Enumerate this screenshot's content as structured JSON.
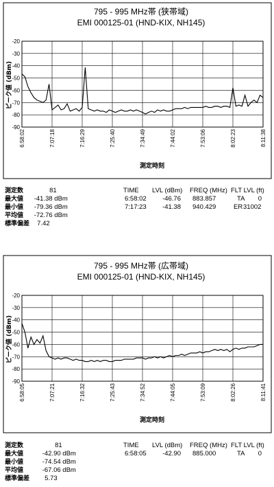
{
  "chart_data": [
    {
      "type": "line",
      "title": "795 - 995 MHz帯 (狭帯域)",
      "subtitle": "EMI 000125-01 (HND-KIX, NH145)",
      "xlabel": "測定時刻",
      "ylabel": "ピーク値 (dBm)",
      "ylim": [
        -90,
        -20
      ],
      "yticks": [
        "-20",
        "-30",
        "-40",
        "-50",
        "-60",
        "-70",
        "-80",
        "-90"
      ],
      "xticks": [
        "6:58:02",
        "7:07:18",
        "7:16:29",
        "7:25:40",
        "7:34:49",
        "7:44:02",
        "7:53:06",
        "8:02:23",
        "8:11:38"
      ],
      "grid": true,
      "series": [
        {
          "values": [
            -46.76,
            -49,
            -57,
            -62,
            -66,
            -68,
            -69,
            -70,
            -68,
            -55,
            -76,
            -74,
            -72,
            -76,
            -75,
            -71,
            -77,
            -76,
            -75,
            -77,
            -74,
            -41.38,
            -75,
            -76,
            -77,
            -76,
            -77,
            -77,
            -78,
            -76,
            -77,
            -78,
            -77,
            -76,
            -77,
            -77,
            -76,
            -77,
            -76,
            -77,
            -78,
            -79.36,
            -78,
            -77,
            -78,
            -76,
            -77,
            -76,
            -77,
            -77,
            -76,
            -75,
            -75,
            -75,
            -74,
            -75,
            -74,
            -74,
            -74,
            -74,
            -74,
            -73,
            -74,
            -74,
            -73,
            -73,
            -74,
            -73,
            -73,
            -74,
            -58,
            -73,
            -72,
            -73,
            -64,
            -73,
            -70,
            -68,
            -70,
            -64,
            -66
          ]
        }
      ]
    },
    {
      "type": "line",
      "title": "795 - 995 MHz帯 (広帯域)",
      "subtitle": "EMI 000125-01 (HND-KIX, NH145)",
      "xlabel": "測定時刻",
      "ylabel": "ピーク値 (dBm)",
      "ylim": [
        -90,
        -20
      ],
      "yticks": [
        "-20",
        "-30",
        "-40",
        "-50",
        "-60",
        "-70",
        "-80",
        "-90"
      ],
      "xticks": [
        "6:58:05",
        "7:07:21",
        "7:16:32",
        "7:25:43",
        "7:34:52",
        "7:44:05",
        "7:53:09",
        "8:02:26",
        "8:11:41"
      ],
      "grid": true,
      "series": [
        {
          "values": [
            -42.9,
            -50,
            -63,
            -54,
            -60,
            -56,
            -59,
            -53,
            -65,
            -70,
            -71,
            -72,
            -71,
            -72,
            -71,
            -71,
            -72,
            -73,
            -72,
            -73,
            -73,
            -74,
            -74,
            -73,
            -74,
            -73,
            -74,
            -73,
            -73,
            -74,
            -74,
            -73,
            -73,
            -73,
            -72,
            -72,
            -72,
            -72,
            -71,
            -71,
            -71,
            -72,
            -71,
            -71,
            -70,
            -71,
            -70,
            -71,
            -70,
            -69,
            -70,
            -69,
            -69,
            -68,
            -69,
            -68,
            -67,
            -67,
            -67,
            -66,
            -67,
            -66,
            -66,
            -65,
            -64,
            -65,
            -64,
            -65,
            -64,
            -66,
            -64,
            -63,
            -64,
            -63,
            -63,
            -62,
            -62,
            -62,
            -61,
            -60,
            -60
          ]
        }
      ]
    }
  ],
  "stats": [
    {
      "count_label": "測定数",
      "count": "81",
      "rows": [
        {
          "label": "最大値",
          "value": "-41.38",
          "unit": "dBm"
        },
        {
          "label": "最小値",
          "value": "-79.36",
          "unit": "dBm"
        },
        {
          "label": "平均値",
          "value": "-72.76",
          "unit": "dBm"
        },
        {
          "label": "標準偏差",
          "value": "7.42",
          "unit": ""
        }
      ],
      "headers": [
        "TIME",
        "LVL (dBm)",
        "FREQ (MHz)",
        "FLT LVL (ft)"
      ],
      "entries": [
        [
          "6:58:02",
          "-46.76",
          "883.857",
          "TA",
          "0"
        ],
        [
          "7:17:23",
          "-41.38",
          "940.429",
          "ER",
          "31002"
        ]
      ]
    },
    {
      "count_label": "測定数",
      "count": "81",
      "rows": [
        {
          "label": "最大値",
          "value": "-42.90",
          "unit": "dBm"
        },
        {
          "label": "最小値",
          "value": "-74.54",
          "unit": "dBm"
        },
        {
          "label": "平均値",
          "value": "-67.06",
          "unit": "dBm"
        },
        {
          "label": "標準偏差",
          "value": "5.73",
          "unit": ""
        }
      ],
      "headers": [
        "TIME",
        "LVL (dBm)",
        "FREQ (MHz)",
        "FLT LVL (ft)"
      ],
      "entries": [
        [
          "6:58:05",
          "-42.90",
          "885.000",
          "TA",
          "0"
        ]
      ]
    }
  ]
}
